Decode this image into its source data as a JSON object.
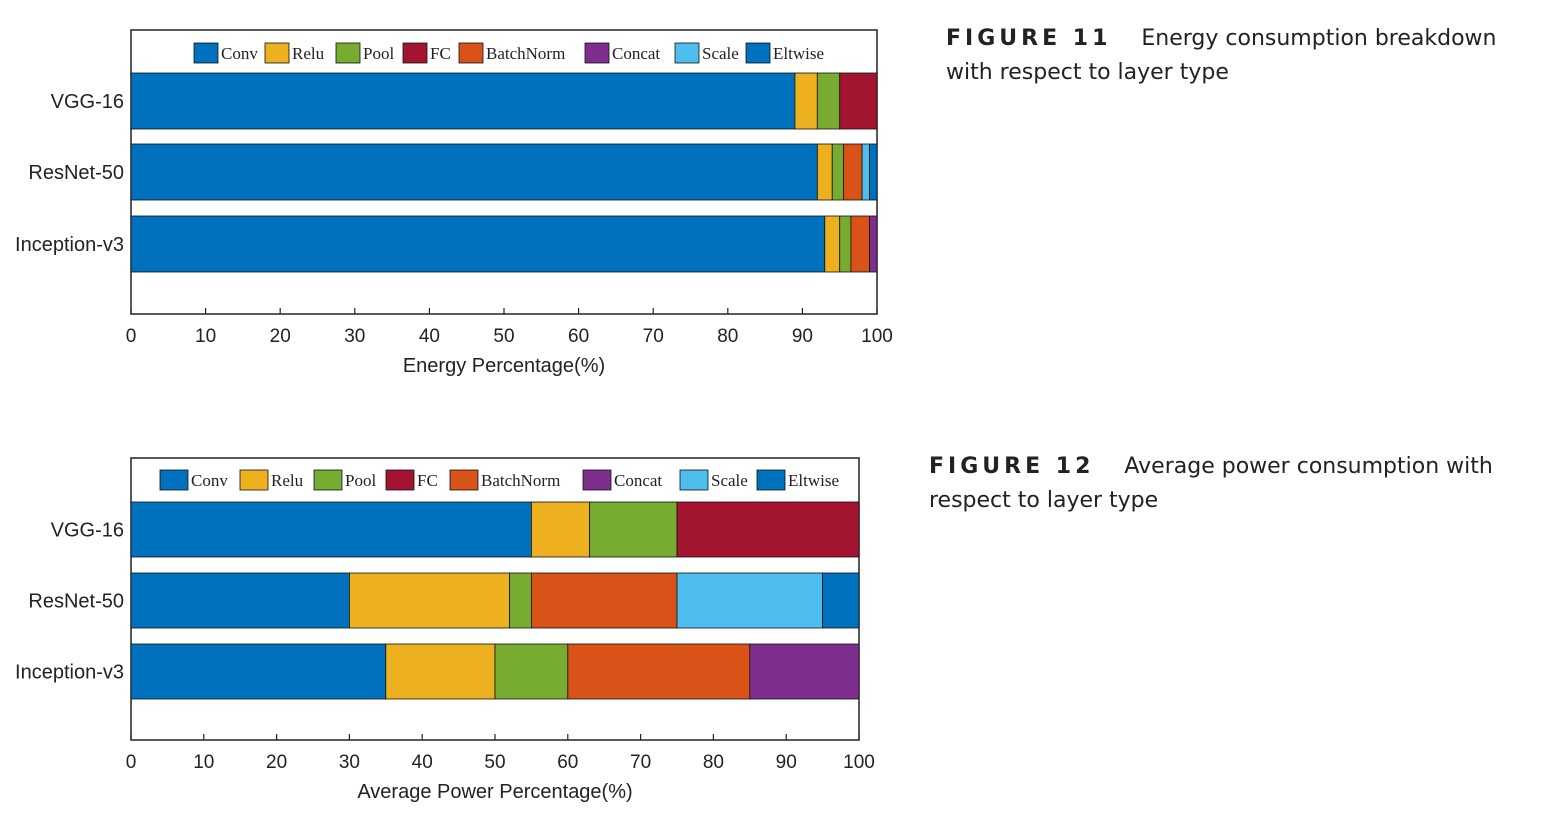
{
  "colors": {
    "Conv": "#0072bd",
    "Relu": "#edb120",
    "Pool": "#77ac30",
    "FC": "#a2142f",
    "BatchNorm": "#d95319",
    "Concat": "#7e2f8e",
    "Scale": "#4dbeee",
    "Eltwise": "#0072bd"
  },
  "captions": [
    {
      "label": "FIGURE 11",
      "text": "Energy consumption breakdown with respect to layer type"
    },
    {
      "label": "FIGURE 12",
      "text": "Average power consumption with respect to layer type"
    }
  ],
  "chart_data": [
    {
      "type": "bar",
      "orientation": "horizontal",
      "stacked": true,
      "categories": [
        "VGG-16",
        "ResNet-50",
        "Inception-v3"
      ],
      "xlabel": "Energy Percentage(%)",
      "xlim": [
        0,
        100
      ],
      "xticks": [
        0,
        10,
        20,
        30,
        40,
        50,
        60,
        70,
        80,
        90,
        100
      ],
      "legend": "top",
      "series": [
        {
          "name": "Conv",
          "values": [
            89,
            92,
            93
          ]
        },
        {
          "name": "Relu",
          "values": [
            3,
            2,
            2
          ]
        },
        {
          "name": "Pool",
          "values": [
            3,
            1.5,
            1.5
          ]
        },
        {
          "name": "FC",
          "values": [
            5,
            0,
            0
          ]
        },
        {
          "name": "BatchNorm",
          "values": [
            0,
            2.5,
            2.5
          ]
        },
        {
          "name": "Concat",
          "values": [
            0,
            0,
            1
          ]
        },
        {
          "name": "Scale",
          "values": [
            0,
            1,
            0
          ]
        },
        {
          "name": "Eltwise",
          "values": [
            0,
            1,
            0
          ]
        }
      ]
    },
    {
      "type": "bar",
      "orientation": "horizontal",
      "stacked": true,
      "categories": [
        "VGG-16",
        "ResNet-50",
        "Inception-v3"
      ],
      "xlabel": "Average Power Percentage(%)",
      "xlim": [
        0,
        100
      ],
      "xticks": [
        0,
        10,
        20,
        30,
        40,
        50,
        60,
        70,
        80,
        90,
        100
      ],
      "legend": "top",
      "series": [
        {
          "name": "Conv",
          "values": [
            55,
            30,
            35
          ]
        },
        {
          "name": "Relu",
          "values": [
            8,
            22,
            15
          ]
        },
        {
          "name": "Pool",
          "values": [
            12,
            3,
            10
          ]
        },
        {
          "name": "FC",
          "values": [
            25,
            0,
            0
          ]
        },
        {
          "name": "BatchNorm",
          "values": [
            0,
            20,
            25
          ]
        },
        {
          "name": "Concat",
          "values": [
            0,
            0,
            15
          ]
        },
        {
          "name": "Scale",
          "values": [
            0,
            20,
            0
          ]
        },
        {
          "name": "Eltwise",
          "values": [
            0,
            5,
            0
          ]
        }
      ]
    }
  ]
}
